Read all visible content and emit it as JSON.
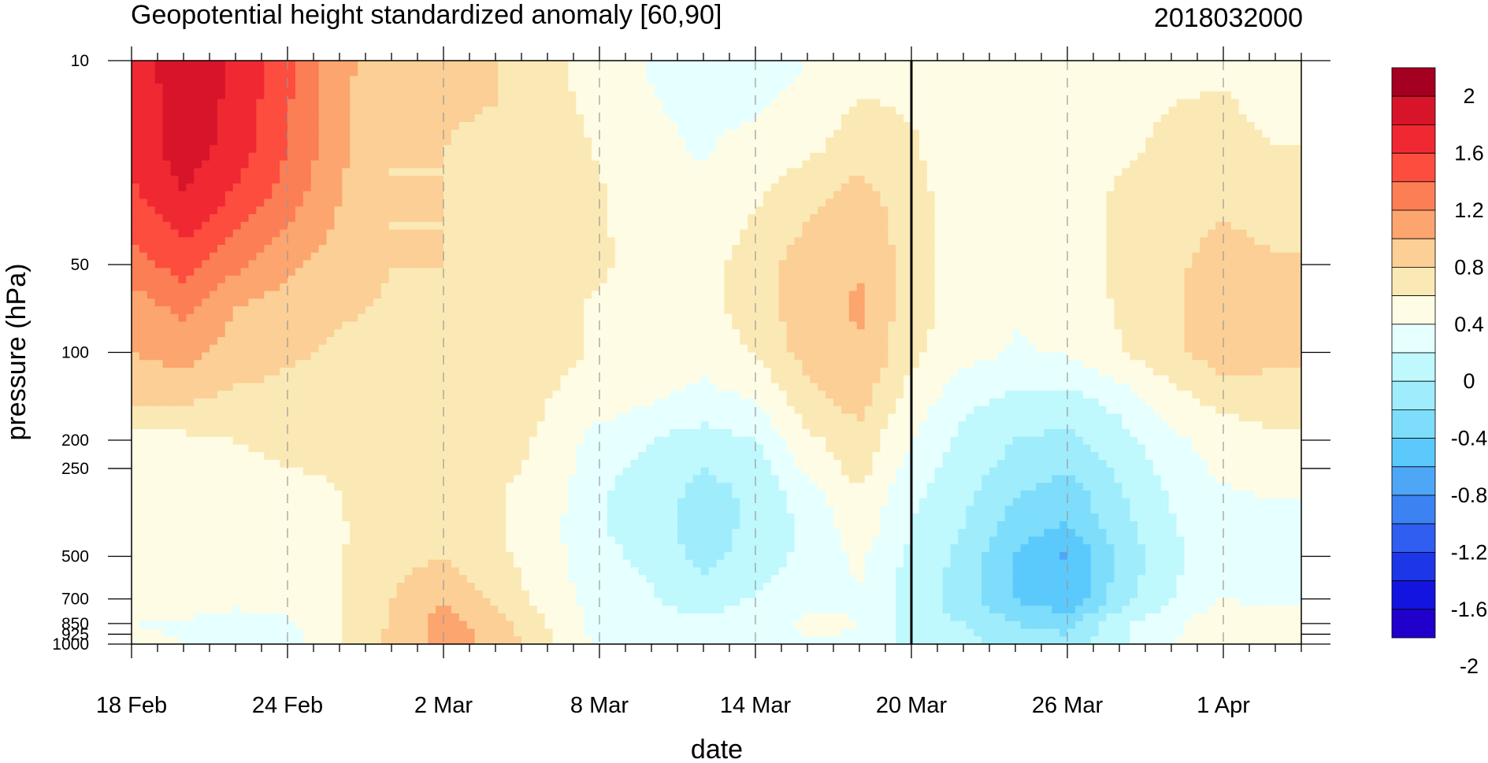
{
  "chart_data": {
    "type": "heatmap",
    "title": "Geopotential height standardized anomaly [60,90]",
    "date_label": "2018032000",
    "xlabel": "date",
    "ylabel": "pressure (hPa)",
    "x_ticks": [
      {
        "label": "18 Feb",
        "day": 0
      },
      {
        "label": "24 Feb",
        "day": 6
      },
      {
        "label": "2 Mar",
        "day": 12
      },
      {
        "label": "8 Mar",
        "day": 18
      },
      {
        "label": "14 Mar",
        "day": 24
      },
      {
        "label": "20 Mar",
        "day": 30
      },
      {
        "label": "26 Mar",
        "day": 36
      },
      {
        "label": "1 Apr",
        "day": 42
      }
    ],
    "xlim_days": [
      0,
      45
    ],
    "current_date_day": 30,
    "y_ticks": [
      10,
      50,
      100,
      200,
      250,
      500,
      700,
      850,
      925,
      1000
    ],
    "y_scale": "log",
    "ylim": [
      1000,
      10
    ],
    "colorbar": {
      "labels": [
        "2",
        "1.6",
        "1.2",
        "0.8",
        "0.4",
        "0",
        "-0.4",
        "-0.8",
        "-1.2",
        "-1.6",
        "-2"
      ],
      "colors": [
        "#a50021",
        "#d8142b",
        "#f02832",
        "#fc4d3f",
        "#fc7e55",
        "#fca56e",
        "#fbcf95",
        "#fbe9b5",
        "#fffce5",
        "#e6ffff",
        "#bff8fd",
        "#9fecfc",
        "#7dddfb",
        "#5bc9fb",
        "#4ea6f7",
        "#3c82f2",
        "#2f5ef0",
        "#1d36e8",
        "#1414e0",
        "#2200cc"
      ]
    },
    "times": [
      0,
      2,
      4,
      6,
      8,
      10,
      12,
      14,
      16,
      18,
      20,
      22,
      24,
      26,
      28,
      30,
      32,
      34,
      36,
      38,
      40,
      42,
      44
    ],
    "levels": [
      10,
      20,
      30,
      50,
      70,
      100,
      150,
      200,
      250,
      300,
      400,
      500,
      700,
      850,
      1000
    ],
    "values": [
      [
        1.45,
        1.75,
        1.58,
        1.25,
        0.88,
        0.6,
        0.62,
        0.62,
        0.45,
        0.3,
        0.18,
        0.1,
        0.05,
        0.2,
        0.33,
        0.35,
        0.3,
        0.25,
        0.28,
        0.3,
        0.35,
        0.38,
        0.32
      ],
      [
        1.45,
        1.7,
        1.52,
        1.2,
        0.85,
        0.6,
        0.6,
        0.58,
        0.5,
        0.38,
        0.25,
        0.18,
        0.28,
        0.35,
        0.5,
        0.42,
        0.3,
        0.25,
        0.28,
        0.35,
        0.45,
        0.45,
        0.4
      ],
      [
        1.35,
        1.58,
        1.35,
        1.1,
        0.8,
        0.6,
        0.6,
        0.55,
        0.5,
        0.42,
        0.3,
        0.25,
        0.38,
        0.55,
        0.7,
        0.48,
        0.28,
        0.22,
        0.25,
        0.45,
        0.5,
        0.55,
        0.5
      ],
      [
        1.1,
        1.3,
        1.05,
        0.85,
        0.7,
        0.6,
        0.6,
        0.55,
        0.45,
        0.42,
        0.35,
        0.32,
        0.5,
        0.7,
        0.8,
        0.5,
        0.3,
        0.2,
        0.28,
        0.45,
        0.55,
        0.7,
        0.62
      ],
      [
        0.9,
        1.05,
        0.8,
        0.7,
        0.62,
        0.58,
        0.58,
        0.52,
        0.45,
        0.38,
        0.35,
        0.32,
        0.5,
        0.72,
        0.82,
        0.48,
        0.3,
        0.22,
        0.28,
        0.42,
        0.55,
        0.75,
        0.7
      ],
      [
        0.8,
        0.9,
        0.7,
        0.62,
        0.58,
        0.55,
        0.55,
        0.52,
        0.45,
        0.38,
        0.32,
        0.28,
        0.42,
        0.68,
        0.8,
        0.45,
        0.28,
        0.18,
        0.22,
        0.38,
        0.55,
        0.72,
        0.68
      ],
      [
        0.6,
        0.6,
        0.55,
        0.55,
        0.52,
        0.5,
        0.52,
        0.48,
        0.4,
        0.3,
        0.2,
        0.12,
        0.18,
        0.5,
        0.68,
        0.3,
        0.05,
        -0.08,
        -0.1,
        0.05,
        0.3,
        0.45,
        0.45
      ],
      [
        0.35,
        0.35,
        0.4,
        0.42,
        0.48,
        0.48,
        0.48,
        0.45,
        0.38,
        0.1,
        0.0,
        -0.1,
        0.0,
        0.35,
        0.52,
        0.2,
        -0.05,
        -0.2,
        -0.25,
        -0.08,
        0.15,
        0.3,
        0.38
      ],
      [
        0.35,
        0.35,
        0.38,
        0.4,
        0.42,
        0.48,
        0.48,
        0.45,
        0.35,
        0.05,
        -0.05,
        -0.2,
        -0.1,
        0.25,
        0.48,
        0.12,
        -0.1,
        -0.28,
        -0.38,
        -0.15,
        0.08,
        0.25,
        0.3
      ],
      [
        0.32,
        0.3,
        0.3,
        0.32,
        0.4,
        0.5,
        0.5,
        0.42,
        0.3,
        0.02,
        -0.08,
        -0.28,
        -0.15,
        0.1,
        0.38,
        0.05,
        -0.15,
        -0.38,
        -0.5,
        -0.22,
        0.02,
        0.18,
        0.22
      ],
      [
        0.3,
        0.28,
        0.25,
        0.28,
        0.38,
        0.52,
        0.55,
        0.42,
        0.28,
        0.02,
        -0.1,
        -0.3,
        -0.15,
        0.05,
        0.32,
        0.0,
        -0.2,
        -0.5,
        -0.62,
        -0.28,
        -0.02,
        0.12,
        0.15
      ],
      [
        0.32,
        0.3,
        0.28,
        0.3,
        0.38,
        0.55,
        0.58,
        0.45,
        0.28,
        0.05,
        -0.05,
        -0.28,
        -0.1,
        0.05,
        0.25,
        -0.05,
        -0.25,
        -0.62,
        -0.82,
        -0.35,
        -0.05,
        0.12,
        0.05
      ],
      [
        0.35,
        0.32,
        0.28,
        0.3,
        0.4,
        0.6,
        0.78,
        0.55,
        0.32,
        0.1,
        0.02,
        -0.1,
        0.02,
        0.15,
        0.18,
        -0.1,
        -0.3,
        -0.6,
        -0.78,
        -0.3,
        0.0,
        0.2,
        0.15
      ],
      [
        0.2,
        0.18,
        0.08,
        0.15,
        0.4,
        0.62,
        0.9,
        0.7,
        0.4,
        0.12,
        0.05,
        0.05,
        0.1,
        0.25,
        0.2,
        -0.1,
        -0.2,
        -0.4,
        -0.45,
        -0.05,
        0.15,
        0.35,
        0.3
      ],
      [
        0.25,
        0.2,
        0.05,
        0.1,
        0.4,
        0.65,
        0.88,
        0.75,
        0.42,
        0.15,
        0.05,
        0.02,
        0.05,
        0.18,
        0.18,
        -0.1,
        -0.12,
        -0.3,
        -0.35,
        -0.02,
        0.18,
        0.4,
        0.35
      ]
    ]
  }
}
